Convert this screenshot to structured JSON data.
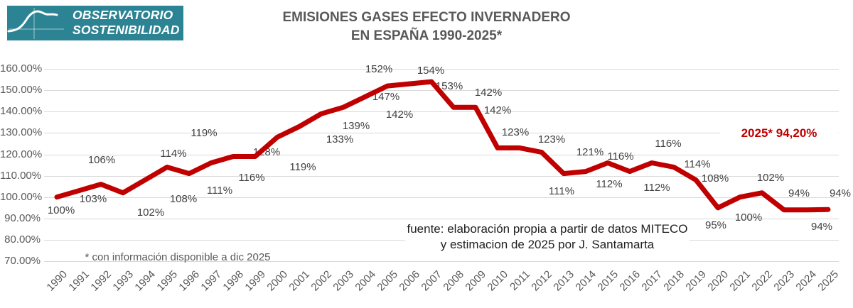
{
  "logo": {
    "line1": "OBSERVATORIO",
    "line2": "SOSTENIBILIDAD",
    "bg_color": "#2C8393"
  },
  "title": {
    "line1": "EMISIONES GASES EFECTO INVERNADERO",
    "line2": "EN ESPAÑA 1990-2025*"
  },
  "annotation": {
    "text": "2025*  94,20%",
    "color": "#C00000"
  },
  "source": {
    "line1": "fuente: elaboración propia a partir de datos MITECO",
    "line2": "y estimacion de 2025 por J. Santamarta"
  },
  "footnote": "* con información disponible a dic 2025",
  "chart_data": {
    "type": "line",
    "title": "EMISIONES GASES EFECTO INVERNADERO EN ESPAÑA 1990-2025*",
    "x": [
      "1990",
      "1991",
      "1992",
      "1993",
      "1994",
      "1995",
      "1996",
      "1997",
      "1998",
      "1999",
      "2000",
      "2001",
      "2002",
      "2003",
      "2004",
      "2005",
      "2006",
      "2007",
      "2008",
      "2009",
      "2010",
      "2011",
      "2012",
      "2013",
      "2014",
      "2015",
      "2016",
      "2017",
      "2018",
      "2019",
      "2020",
      "2021",
      "2022",
      "2023",
      "2024",
      "2025"
    ],
    "values": [
      100,
      103,
      106,
      102,
      108,
      114,
      111,
      116,
      119,
      119,
      128,
      133,
      139,
      142,
      147,
      152,
      153,
      154,
      142,
      142,
      123,
      123,
      121,
      111,
      112,
      116,
      112,
      116,
      114,
      108,
      95,
      100,
      102,
      94,
      94,
      94.2
    ],
    "labels": [
      "100%",
      "103%",
      "106%",
      "102%",
      "108%",
      "114%",
      "111%",
      "116%",
      "119%",
      "119%",
      "128%",
      "133%",
      "139%",
      "142%",
      "147%",
      "152%",
      "153%",
      "154%",
      "142%",
      "142%",
      "123%",
      "123%",
      "121%",
      "111%",
      "112%",
      "116%",
      "112%",
      "116%",
      "114%",
      "108%",
      "95%",
      "100%",
      "102%",
      "94%",
      "94%",
      "94%"
    ],
    "ylabel": "",
    "xlabel": "",
    "ylim": [
      70,
      160
    ],
    "ytick_step": 10,
    "yticks": [
      "70.00%",
      "80.00%",
      "90.00%",
      "100.00%",
      "110.00%",
      "120.00%",
      "130.00%",
      "140.00%",
      "150.00%",
      "160.00%"
    ],
    "grid": true,
    "legend": false,
    "line_color": "#C00000",
    "grid_color": "#D9D9D9"
  }
}
